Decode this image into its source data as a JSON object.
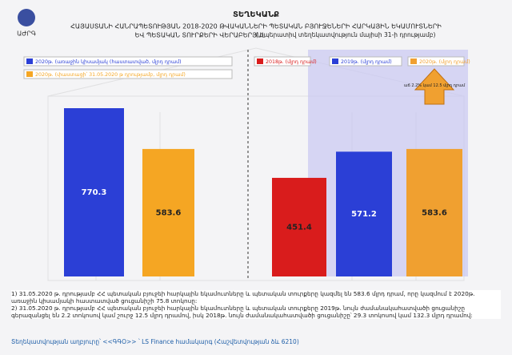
{
  "header": {
    "logo": "ԱԺՐԳ",
    "title": "ՏԵՂԵԿԱՆՔ",
    "lines": [
      "ՀԱՅԱՍՏԱՆԻ ՀԱՆՐԱՊԵՏՈՒԹՅԱՆ 2018-2020 ԹՎԱԿԱՆՆԵՐԻ ՊԵՏԱԿԱՆ ԲՅՈՒՋԵՆԵՐԻ ՀԱՐԿԱՅԻՆ ԵԿԱՄՈՒՏՆԵՐԻ",
      "ԵՎ ՊԵՏԱԿԱՆ ՏՈՒՐՔԵՐԻ ՎԵՐԱԲԵՐՅԱԼ"
    ],
    "subtitle": "( օպերատիվ տեղեկատվություն մայիսի 31-ի դրությամբ)"
  },
  "chart_data": [
    {
      "type": "bar",
      "series": [
        {
          "name": "2020թ. (առաջին կիսամյակ (հաստատված, մլրդ դրամ)",
          "color": "#2b3fd6",
          "values": [
            770.3
          ]
        },
        {
          "name": "2020թ. (փաստացի՝ 31.05.2020 թ դրությամբ, մլրդ դրամ)",
          "color": "#f5a623",
          "values": [
            583.6
          ]
        }
      ]
    },
    {
      "type": "bar",
      "annotation": "աճ 2.2% կամ 12.5 մլրդ դրամ",
      "series": [
        {
          "name": "2018թ. (մլրդ դրամ)",
          "color": "#d91c1c",
          "values": [
            451.4
          ]
        },
        {
          "name": "2019թ. (մլրդ դրամ)",
          "color": "#2b3fd6",
          "values": [
            571.2
          ]
        },
        {
          "name": "2020թ. (մլրդ դրամ)",
          "color": "#f0a030",
          "values": [
            583.6
          ]
        }
      ]
    }
  ],
  "notes": [
    "1) 31.05.2020 թ. դրությամբ ՀՀ պետական բյուջեի հարկային եկամուտները և պետական տուրքերը կազմել են 583.6 մլրդ դրամ, որը կազմում է 2020թ. առաջին կիսամյակի հաստատված ցուցանիշի 75.8 տոկոսը:",
    "2) 31.05.2020 թ. դրությամբ ՀՀ պետական բյուջեի հարկային եկամուտները և պետական տուրքերը 2019թ. նույն ժամանակահատվածի ցուցանիշը գերազանցել են 2.2 տոկոսով կամ շուրջ 12.5 մլրդ դրամով, իսկ 2018թ. նույն ժամանակահատվածի ցուցանիշը՝ 29.3 տոկոսով կամ 132.3 մլրդ դրամով:"
  ],
  "source": "Տեղեկատվության աղբյուրը՝ <<ԳԳՕ>> ՝ LS Finance համակարգ (Հաշվետվության ձև 6210)"
}
